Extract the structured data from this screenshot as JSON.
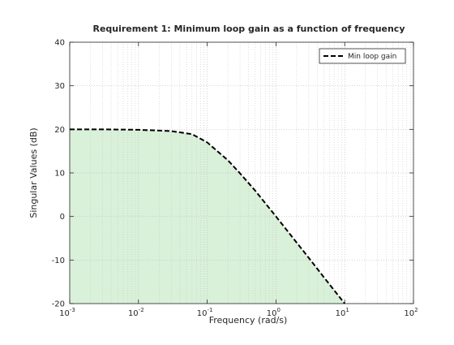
{
  "chart_data": {
    "type": "line",
    "title": "Requirement 1: Minimum loop gain as a function of frequency",
    "xlabel": "Frequency (rad/s)",
    "ylabel": "Singular Values (dB)",
    "xscale": "log",
    "xlim": [
      0.001,
      100
    ],
    "ylim": [
      -20,
      40
    ],
    "x_tick_values": [
      0.001,
      0.01,
      0.1,
      1,
      10,
      100
    ],
    "x_ticks": [
      {
        "base": "10",
        "exp": "-3"
      },
      {
        "base": "10",
        "exp": "-2"
      },
      {
        "base": "10",
        "exp": "-1"
      },
      {
        "base": "10",
        "exp": "0"
      },
      {
        "base": "10",
        "exp": "1"
      },
      {
        "base": "10",
        "exp": "2"
      }
    ],
    "y_ticks": [
      "-20",
      "-10",
      "0",
      "10",
      "20",
      "30",
      "40"
    ],
    "y_tick_values": [
      -20,
      -10,
      0,
      10,
      20,
      30,
      40
    ],
    "grid": true,
    "legend_position": "top-right",
    "series": [
      {
        "name": "Min loop gain",
        "style": "dashed",
        "color": "#000000",
        "fill_below": true,
        "fill_color": "#d9f0d9",
        "x": [
          0.001,
          0.003,
          0.01,
          0.03,
          0.06,
          0.1,
          0.2,
          0.3,
          0.5,
          1,
          2,
          3,
          5,
          10
        ],
        "y": [
          20,
          20,
          19.9,
          19.6,
          18.9,
          17.0,
          12.9,
          9.9,
          5.9,
          0,
          -6.0,
          -9.5,
          -14.0,
          -20.0
        ]
      }
    ]
  }
}
